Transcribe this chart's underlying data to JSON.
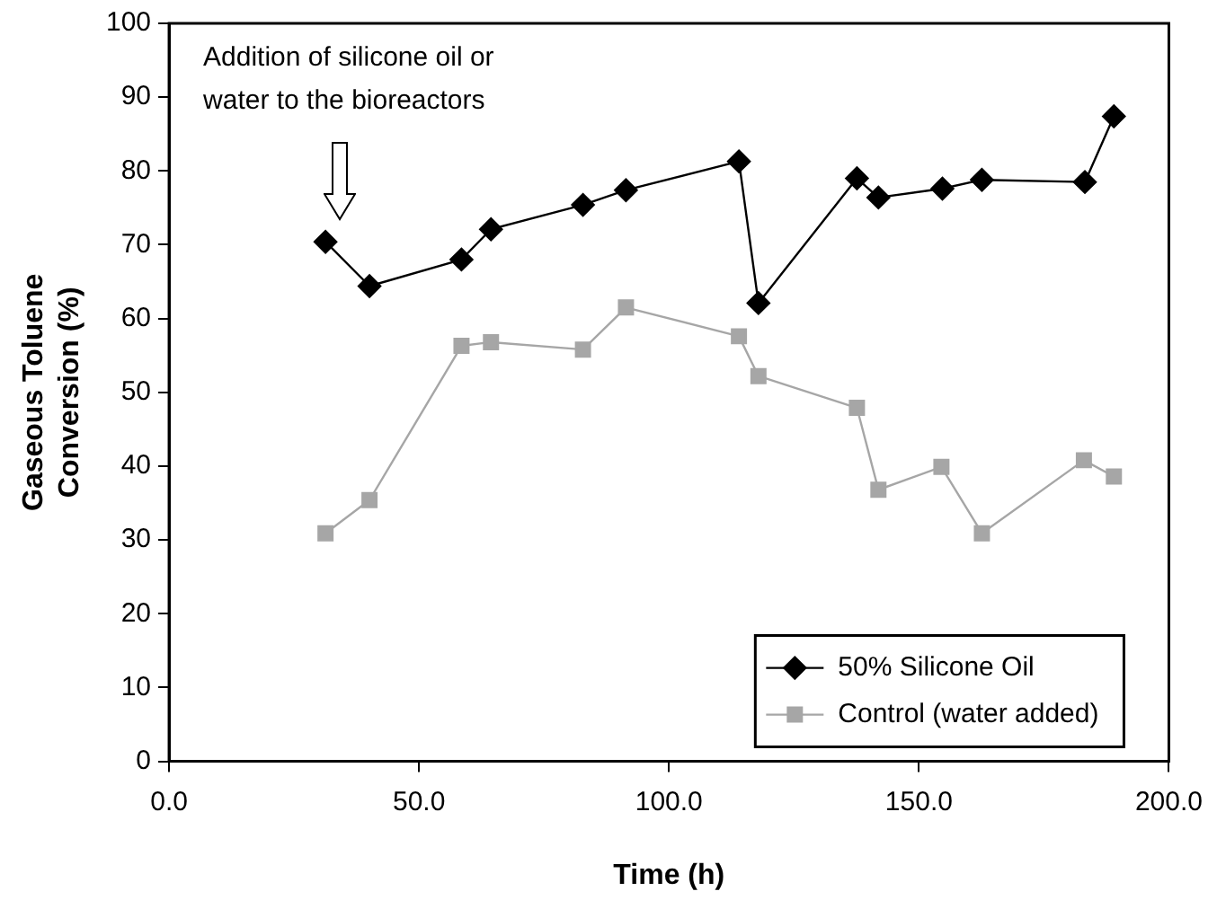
{
  "chart_data": {
    "type": "line",
    "xlabel": "Time (h)",
    "ylabel": "Gaseous Toluene\nConversion (%)",
    "xlim": [
      0,
      200
    ],
    "xticks": [
      {
        "value": 0,
        "label": "0.0"
      },
      {
        "value": 50,
        "label": "50.0"
      },
      {
        "value": 100,
        "label": "100.0"
      },
      {
        "value": 150,
        "label": "150.0"
      },
      {
        "value": 200,
        "label": "200.0"
      }
    ],
    "ylim": [
      0,
      100
    ],
    "yticks": [
      0,
      10,
      20,
      30,
      40,
      50,
      60,
      70,
      80,
      90,
      100
    ],
    "grid": false,
    "legend": "bottom right",
    "line_style": "solid",
    "annotations": [
      "Addition of silicone oil or\nwater to the bioreactors"
    ],
    "series": [
      {
        "name": "50% Silicone Oil",
        "color": "#000000",
        "marker": "diamond",
        "x": [
          31.3,
          40.1,
          58.5,
          64.4,
          82.8,
          91.4,
          114.0,
          117.9,
          137.6,
          141.9,
          154.7,
          162.6,
          183.2,
          189.0
        ],
        "values": [
          70.4,
          64.4,
          68.0,
          72.1,
          75.4,
          77.4,
          81.3,
          62.1,
          79.0,
          76.4,
          77.6,
          78.8,
          78.5,
          87.4
        ]
      },
      {
        "name": "Control (water added)",
        "color": "#a6a6a6",
        "marker": "square",
        "x": [
          31.3,
          40.1,
          58.5,
          64.4,
          82.8,
          91.4,
          114.0,
          117.9,
          137.6,
          141.9,
          154.5,
          162.6,
          183.0,
          189.0
        ],
        "values": [
          30.9,
          35.4,
          56.3,
          56.8,
          55.8,
          61.5,
          57.6,
          52.2,
          47.9,
          36.8,
          39.9,
          30.9,
          40.8,
          38.6
        ]
      }
    ]
  }
}
